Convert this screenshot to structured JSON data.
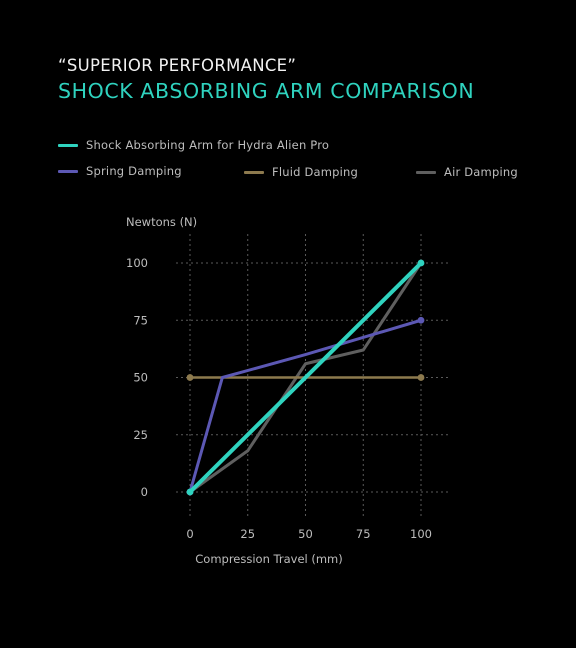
{
  "header": {
    "subtitle": "“SUPERIOR PERFORMANCE”",
    "title": "SHOCK ABSORBING ARM COMPARISON"
  },
  "colors": {
    "background": "#000000",
    "accent": "#2fd3bf",
    "grid": "#5a5a5a",
    "text": "#bdbdbd"
  },
  "chart_data": {
    "type": "line",
    "title": "SHOCK ABSORBING ARM COMPARISON",
    "subtitle": "“SUPERIOR PERFORMANCE”",
    "xlabel": "Compression Travel (mm)",
    "ylabel": "Newtons (N)",
    "xlim": [
      0,
      100
    ],
    "ylim": [
      0,
      100
    ],
    "xticks": [
      0,
      25,
      50,
      75,
      100
    ],
    "yticks": [
      0,
      25,
      50,
      75,
      100
    ],
    "xtick_labels": [
      "0",
      "25",
      "50",
      "75",
      "100"
    ],
    "ytick_labels": [
      "0",
      "25",
      "50",
      "75",
      "100"
    ],
    "grid": true,
    "grid_style": "dashed",
    "legend_position": "top",
    "series": [
      {
        "name": "Air Damping",
        "color": "#5f5f5f",
        "points": [
          [
            0,
            0
          ],
          [
            25,
            18
          ],
          [
            50,
            56
          ],
          [
            75,
            62
          ],
          [
            100,
            100
          ]
        ],
        "markers": false
      },
      {
        "name": "Fluid Damping",
        "color": "#8d7a4e",
        "points": [
          [
            0,
            50
          ],
          [
            100,
            50
          ]
        ],
        "markers": true
      },
      {
        "name": "Spring Damping",
        "color": "#5c58b4",
        "points": [
          [
            0,
            0
          ],
          [
            14,
            50
          ],
          [
            50,
            60
          ],
          [
            100,
            75
          ]
        ],
        "markers": true
      },
      {
        "name": "Shock Absorbing Arm for Hydra Alien Pro",
        "color": "#2fd3bf",
        "points": [
          [
            0,
            0
          ],
          [
            100,
            100
          ]
        ],
        "markers": true
      }
    ]
  }
}
